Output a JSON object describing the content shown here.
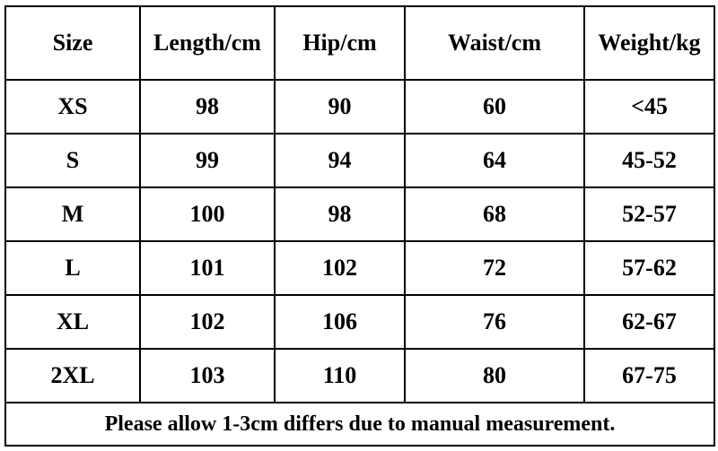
{
  "table": {
    "header": [
      "Size",
      "Length/cm",
      "Hip/cm",
      "Waist/cm",
      "Weight/kg"
    ],
    "rows": [
      [
        "XS",
        "98",
        "90",
        "60",
        "<45"
      ],
      [
        "S",
        "99",
        "94",
        "64",
        "45-52"
      ],
      [
        "M",
        "100",
        "98",
        "68",
        "52-57"
      ],
      [
        "L",
        "101",
        "102",
        "72",
        "57-62"
      ],
      [
        "XL",
        "102",
        "106",
        "76",
        "62-67"
      ],
      [
        "2XL",
        "103",
        "110",
        "80",
        "67-75"
      ]
    ],
    "footer": "Please allow 1-3cm differs due to manual measurement."
  }
}
